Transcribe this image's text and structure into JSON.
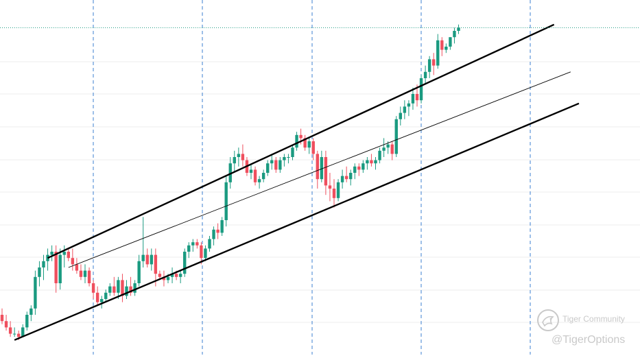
{
  "chart_data": {
    "type": "candlestick",
    "title": "",
    "xlabel": "",
    "ylabel": "",
    "grid": true,
    "ylim": [
      0,
      100
    ],
    "colors": {
      "up": "#1a9a80",
      "down": "#ef4f5e",
      "vgrid": "#3b7fd0",
      "hgrid": "#ececec",
      "trend": "#000000",
      "price_line": "#1a9a80"
    },
    "candles": [
      [
        10,
        12,
        7,
        8
      ],
      [
        8,
        10,
        5,
        6
      ],
      [
        6,
        8,
        3,
        4
      ],
      [
        4,
        6,
        3,
        4
      ],
      [
        4,
        5,
        2,
        3
      ],
      [
        3,
        7,
        3,
        6
      ],
      [
        6,
        11,
        5,
        10
      ],
      [
        10,
        13,
        8,
        12
      ],
      [
        12,
        24,
        10,
        22
      ],
      [
        22,
        27,
        19,
        25
      ],
      [
        25,
        29,
        21,
        27
      ],
      [
        27,
        31,
        24,
        29
      ],
      [
        29,
        32,
        27,
        30
      ],
      [
        30,
        32,
        17,
        20
      ],
      [
        20,
        31,
        18,
        29
      ],
      [
        29,
        32,
        25,
        30
      ],
      [
        30,
        31,
        27,
        28
      ],
      [
        28,
        31,
        24,
        26
      ],
      [
        26,
        28,
        23,
        24
      ],
      [
        24,
        26,
        21,
        22
      ],
      [
        22,
        26,
        20,
        24
      ],
      [
        24,
        25,
        19,
        20
      ],
      [
        20,
        21,
        15,
        17
      ],
      [
        17,
        19,
        13,
        14
      ],
      [
        14,
        16,
        12,
        15
      ],
      [
        15,
        18,
        14,
        17
      ],
      [
        17,
        20,
        16,
        19
      ],
      [
        19,
        22,
        16,
        17
      ],
      [
        17,
        22,
        15,
        21
      ],
      [
        21,
        23,
        14,
        16
      ],
      [
        16,
        21,
        15,
        19
      ],
      [
        19,
        22,
        16,
        17
      ],
      [
        17,
        21,
        16,
        20
      ],
      [
        20,
        29,
        19,
        27
      ],
      [
        27,
        41,
        25,
        29
      ],
      [
        29,
        31,
        25,
        26
      ],
      [
        26,
        31,
        24,
        29
      ],
      [
        29,
        31,
        19,
        23
      ],
      [
        23,
        24,
        21,
        22
      ],
      [
        22,
        24,
        19,
        21
      ],
      [
        21,
        23,
        20,
        22
      ],
      [
        22,
        25,
        20,
        23
      ],
      [
        23,
        24,
        21,
        22
      ],
      [
        22,
        24,
        20,
        23
      ],
      [
        23,
        31,
        22,
        30
      ],
      [
        30,
        33,
        28,
        32
      ],
      [
        32,
        34,
        30,
        33
      ],
      [
        33,
        34,
        31,
        32
      ],
      [
        32,
        33,
        26,
        28
      ],
      [
        28,
        32,
        27,
        31
      ],
      [
        31,
        35,
        30,
        34
      ],
      [
        34,
        38,
        32,
        37
      ],
      [
        37,
        39,
        34,
        36
      ],
      [
        36,
        41,
        35,
        40
      ],
      [
        40,
        54,
        38,
        52
      ],
      [
        52,
        60,
        50,
        58
      ],
      [
        58,
        62,
        55,
        60
      ],
      [
        60,
        63,
        57,
        61
      ],
      [
        61,
        64,
        57,
        59
      ],
      [
        59,
        60,
        54,
        55
      ],
      [
        55,
        58,
        53,
        56
      ],
      [
        56,
        57,
        51,
        52
      ],
      [
        52,
        54,
        50,
        53
      ],
      [
        53,
        56,
        52,
        55
      ],
      [
        55,
        59,
        54,
        58
      ],
      [
        58,
        61,
        56,
        59
      ],
      [
        59,
        60,
        55,
        56
      ],
      [
        56,
        60,
        55,
        59
      ],
      [
        59,
        61,
        57,
        60
      ],
      [
        60,
        61,
        58,
        60
      ],
      [
        60,
        64,
        59,
        63
      ],
      [
        63,
        68,
        62,
        67
      ],
      [
        67,
        69,
        64,
        66
      ],
      [
        66,
        67,
        62,
        63
      ],
      [
        63,
        66,
        61,
        65
      ],
      [
        65,
        66,
        59,
        61
      ],
      [
        61,
        62,
        50,
        53
      ],
      [
        53,
        62,
        52,
        60
      ],
      [
        60,
        62,
        48,
        51
      ],
      [
        51,
        55,
        46,
        50
      ],
      [
        50,
        53,
        44,
        47
      ],
      [
        47,
        53,
        46,
        52
      ],
      [
        52,
        56,
        50,
        54
      ],
      [
        54,
        57,
        52,
        53
      ],
      [
        53,
        56,
        51,
        55
      ],
      [
        55,
        58,
        53,
        57
      ],
      [
        57,
        58,
        54,
        56
      ],
      [
        56,
        59,
        55,
        58
      ],
      [
        58,
        60,
        56,
        59
      ],
      [
        59,
        61,
        57,
        58
      ],
      [
        58,
        60,
        56,
        59
      ],
      [
        59,
        63,
        58,
        62
      ],
      [
        62,
        66,
        60,
        63
      ],
      [
        63,
        65,
        61,
        64
      ],
      [
        64,
        65,
        59,
        61
      ],
      [
        61,
        73,
        60,
        72
      ],
      [
        72,
        76,
        70,
        74
      ],
      [
        74,
        78,
        72,
        76
      ],
      [
        76,
        78,
        73,
        77
      ],
      [
        77,
        82,
        75,
        80
      ],
      [
        80,
        83,
        76,
        78
      ],
      [
        78,
        86,
        77,
        85
      ],
      [
        85,
        89,
        83,
        87
      ],
      [
        87,
        92,
        85,
        91
      ],
      [
        91,
        93,
        86,
        89
      ],
      [
        89,
        99,
        88,
        97
      ],
      [
        97,
        98,
        92,
        94
      ],
      [
        94,
        96,
        93,
        95
      ],
      [
        95,
        98,
        94,
        98
      ],
      [
        98,
        101,
        96,
        100
      ],
      [
        100,
        102,
        99,
        101
      ]
    ],
    "channel": {
      "upper": {
        "x1": 11,
        "y1": 28,
        "x2": 133,
        "y2": 102
      },
      "middle": {
        "x1": 16,
        "y1": 25,
        "x2": 137,
        "y2": 87
      },
      "lower": {
        "x1": 3,
        "y1": 2,
        "x2": 139,
        "y2": 77
      }
    },
    "last_price": 101
  },
  "watermark": {
    "community": "Tiger Community",
    "handle": "@TigerOptions"
  }
}
